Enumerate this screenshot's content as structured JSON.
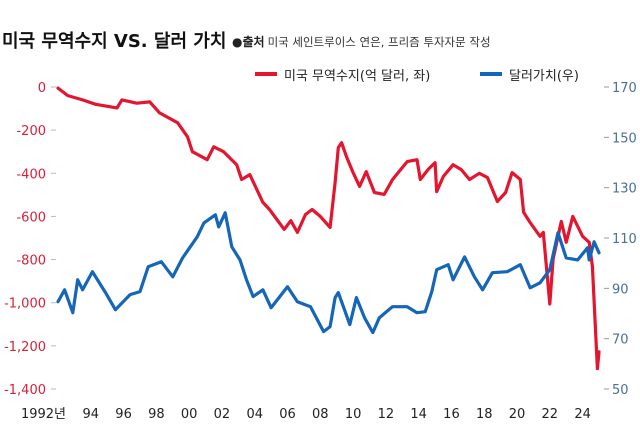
{
  "header": {
    "title": "미국 무역수지 VS. 달러 가치",
    "source_bullet": "●",
    "source_label": "출처",
    "source_text": "미국 세인트루이스 연은, 프리즘 투자자문 작성"
  },
  "colors": {
    "trade_balance": "#e3152f",
    "dollar_value": "#1565b8",
    "left_axis": "#d9213a",
    "right_axis": "#4a6f9a"
  },
  "chart_data": {
    "type": "line",
    "title": "미국 무역수지 VS. 달러 가치",
    "legend_position": "top-right",
    "grid": false,
    "x_ticks": [
      "1992년",
      "94",
      "96",
      "98",
      "00",
      "02",
      "04",
      "06",
      "08",
      "10",
      "12",
      "14",
      "16",
      "18",
      "20",
      "22",
      "24"
    ],
    "x_tick_years": [
      1992,
      1994,
      1996,
      1998,
      2000,
      2002,
      2004,
      2006,
      2008,
      2010,
      2012,
      2014,
      2016,
      2018,
      2020,
      2022,
      2024
    ],
    "xlim": [
      1992,
      2025
    ],
    "left_axis": {
      "ylim": [
        -1400,
        0
      ],
      "ticks": [
        0,
        -200,
        -400,
        -600,
        -800,
        -1000,
        -1200,
        -1400
      ],
      "tick_labels": [
        "0",
        "-200",
        "-400",
        "-600",
        "-800",
        "-1,000",
        "-1,200",
        "-1,400"
      ]
    },
    "right_axis": {
      "ylim": [
        50,
        170
      ],
      "ticks": [
        170,
        150,
        130,
        110,
        90,
        70,
        50
      ],
      "tick_labels": [
        "170",
        "150",
        "130",
        "110",
        "90",
        "70",
        "50"
      ]
    },
    "series": [
      {
        "name": "미국 무역수지(억 달러, 좌)",
        "axis": "left",
        "x": [
          1992.0,
          1992.6,
          1993.5,
          1994.3,
          1995.6,
          1995.9,
          1996.8,
          1997.6,
          1998.2,
          1999.3,
          1999.9,
          2000.2,
          2001.1,
          2001.5,
          2002.1,
          2002.9,
          2003.2,
          2003.7,
          2004.5,
          2004.9,
          2005.8,
          2006.2,
          2006.6,
          2007.1,
          2007.5,
          2008.0,
          2008.6,
          2008.9,
          2009.1,
          2009.3,
          2009.6,
          2010.0,
          2010.4,
          2010.8,
          2011.3,
          2011.9,
          2012.4,
          2012.9,
          2013.3,
          2013.9,
          2014.1,
          2014.6,
          2015.0,
          2015.1,
          2015.5,
          2016.1,
          2016.6,
          2017.1,
          2017.7,
          2018.2,
          2018.8,
          2019.3,
          2019.7,
          2020.2,
          2020.4,
          2020.8,
          2021.4,
          2021.6,
          2022.0,
          2022.2,
          2022.7,
          2023.0,
          2023.4,
          2024.0,
          2024.4,
          2024.6,
          2024.9,
          2025.0
        ],
        "y": [
          -5,
          -40,
          -60,
          -80,
          -97,
          -60,
          -75,
          -69,
          -120,
          -166,
          -231,
          -300,
          -337,
          -277,
          -300,
          -360,
          -429,
          -406,
          -535,
          -568,
          -660,
          -620,
          -674,
          -591,
          -568,
          -600,
          -651,
          -443,
          -281,
          -258,
          -323,
          -397,
          -461,
          -392,
          -489,
          -498,
          -430,
          -383,
          -346,
          -337,
          -429,
          -380,
          -351,
          -485,
          -415,
          -360,
          -383,
          -429,
          -400,
          -420,
          -531,
          -489,
          -397,
          -429,
          -581,
          -628,
          -692,
          -674,
          -1006,
          -798,
          -623,
          -720,
          -600,
          -692,
          -720,
          -831,
          -1306,
          -1228
        ]
      },
      {
        "name": "달러가치(우)",
        "axis": "right",
        "x": [
          1992.0,
          1992.4,
          1992.9,
          1993.2,
          1993.5,
          1994.1,
          1994.9,
          1995.5,
          1996.4,
          1997.0,
          1997.5,
          1998.3,
          1999.0,
          1999.6,
          2000.5,
          2000.9,
          2001.6,
          2001.8,
          2002.2,
          2002.6,
          2003.1,
          2003.5,
          2003.9,
          2004.5,
          2005.0,
          2006.0,
          2006.6,
          2007.4,
          2008.2,
          2008.6,
          2008.9,
          2009.1,
          2009.8,
          2010.2,
          2010.7,
          2011.2,
          2011.6,
          2012.4,
          2013.3,
          2013.9,
          2014.4,
          2014.8,
          2015.1,
          2015.8,
          2016.1,
          2016.8,
          2017.4,
          2017.9,
          2018.5,
          2019.4,
          2020.2,
          2020.8,
          2021.4,
          2022.0,
          2022.5,
          2023.0,
          2023.7,
          2024.3,
          2024.4,
          2024.7,
          2025.0
        ],
        "y": [
          84.7,
          89.4,
          80.3,
          93.4,
          89.4,
          96.6,
          88.3,
          81.5,
          87.5,
          88.7,
          98.6,
          100.6,
          94.6,
          102.1,
          110.5,
          116.0,
          119.2,
          114.4,
          120.0,
          106.5,
          101.3,
          93.4,
          86.7,
          89.4,
          82.3,
          90.6,
          84.7,
          82.7,
          72.8,
          74.8,
          86.3,
          88.3,
          75.6,
          86.3,
          78.3,
          72.4,
          78.3,
          82.7,
          82.7,
          80.3,
          80.7,
          88.7,
          97.4,
          99.4,
          93.4,
          102.5,
          94.6,
          89.4,
          96.2,
          96.6,
          99.4,
          90.2,
          92.2,
          97.4,
          112.1,
          102.1,
          101.3,
          106.1,
          101.3,
          108.5,
          104.1
        ]
      }
    ]
  }
}
